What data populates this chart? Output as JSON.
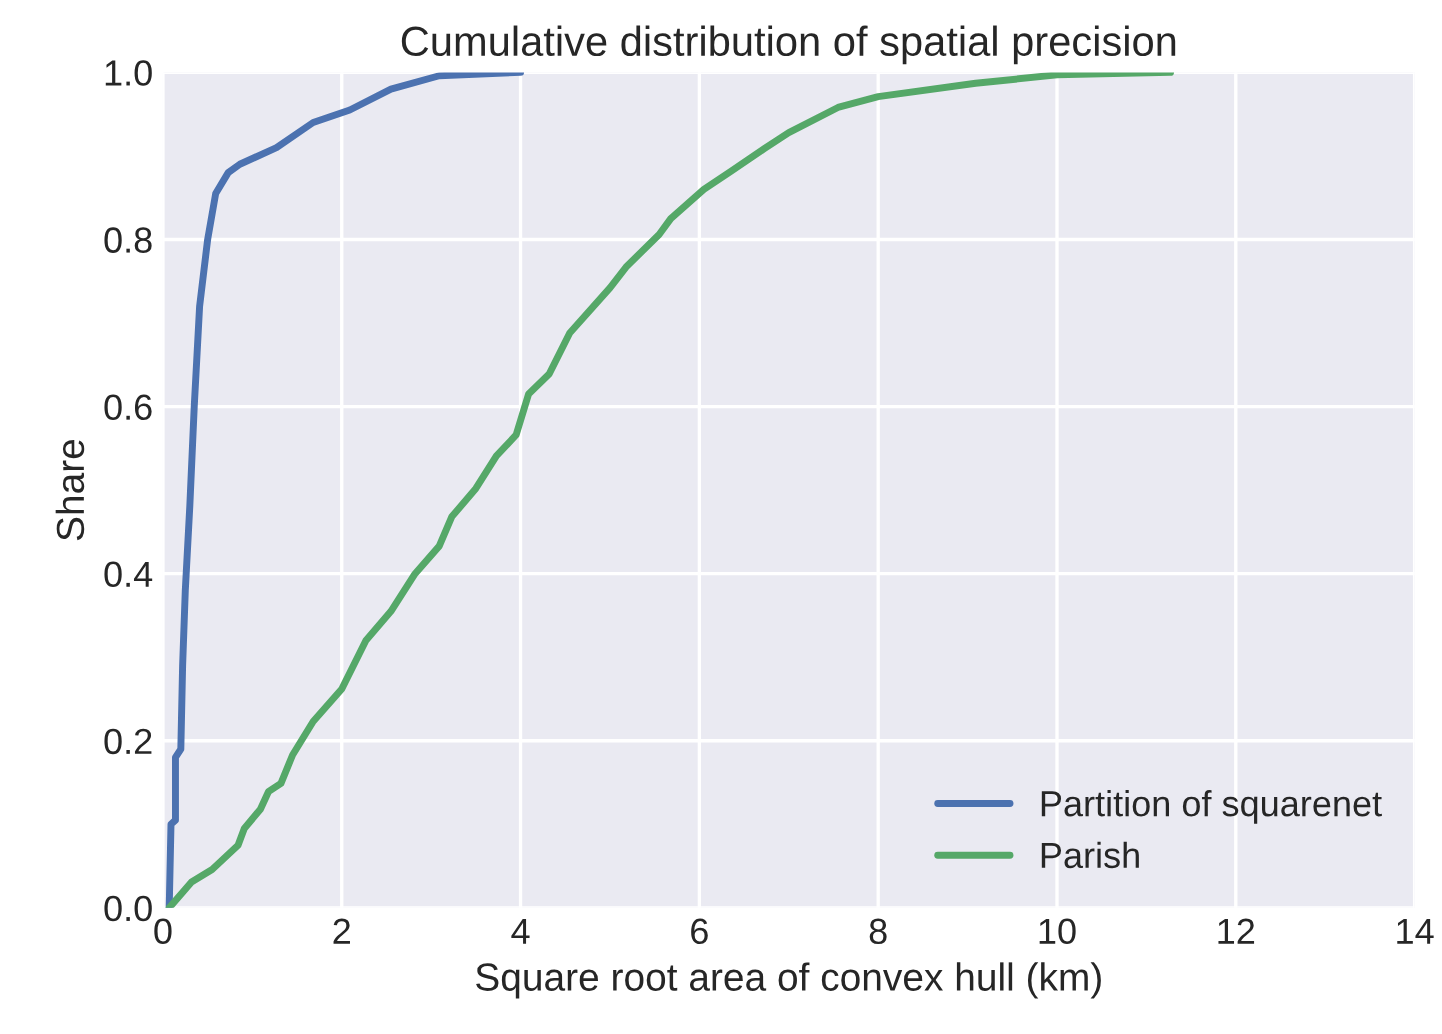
{
  "chart_data": {
    "type": "line",
    "title": "Cumulative distribution of spatial precision",
    "xlabel": "Square root area of convex hull (km)",
    "ylabel": "Share",
    "xlim": [
      0,
      14
    ],
    "xticks": [
      0,
      2,
      4,
      6,
      8,
      10,
      12,
      14
    ],
    "ylim": [
      0,
      1
    ],
    "yticks": [
      {
        "value": 0,
        "label": "0.0"
      },
      0.2,
      0.4,
      0.6,
      0.8,
      {
        "value": 1,
        "label": "1.0"
      }
    ],
    "grid": true,
    "legend": "bottom right",
    "marker": "none",
    "line_style": "solid",
    "series": [
      {
        "name": "Partition of squarenet",
        "color": "#4c72b0",
        "x": [
          0.07,
          0.09,
          0.14,
          0.14,
          0.2,
          0.22,
          0.25,
          0.3,
          0.35,
          0.41,
          0.5,
          0.59,
          0.73,
          0.86,
          1.27,
          1.68,
          2.09,
          2.55,
          3.09,
          4.0
        ],
        "values": [
          0,
          0.1,
          0.105,
          0.18,
          0.19,
          0.29,
          0.38,
          0.48,
          0.6,
          0.72,
          0.8,
          0.855,
          0.88,
          0.89,
          0.91,
          0.94,
          0.955,
          0.98,
          0.996,
          1.0
        ]
      },
      {
        "name": "Parish",
        "color": "#55a868",
        "x": [
          0.07,
          0.32,
          0.55,
          0.84,
          0.91,
          1.09,
          1.18,
          1.32,
          1.45,
          1.68,
          2.0,
          2.27,
          2.55,
          2.82,
          3.09,
          3.23,
          3.5,
          3.73,
          3.95,
          4.09,
          4.32,
          4.55,
          5.0,
          5.18,
          5.55,
          5.68,
          6.05,
          6.36,
          6.73,
          7.0,
          7.55,
          8.0,
          9.09,
          10.0,
          11.27
        ],
        "values": [
          0,
          0.031,
          0.046,
          0.075,
          0.095,
          0.118,
          0.139,
          0.149,
          0.183,
          0.223,
          0.262,
          0.32,
          0.355,
          0.4,
          0.433,
          0.468,
          0.502,
          0.541,
          0.566,
          0.615,
          0.639,
          0.688,
          0.742,
          0.767,
          0.806,
          0.825,
          0.86,
          0.882,
          0.909,
          0.928,
          0.958,
          0.971,
          0.987,
          0.997,
          1.0
        ]
      }
    ]
  }
}
